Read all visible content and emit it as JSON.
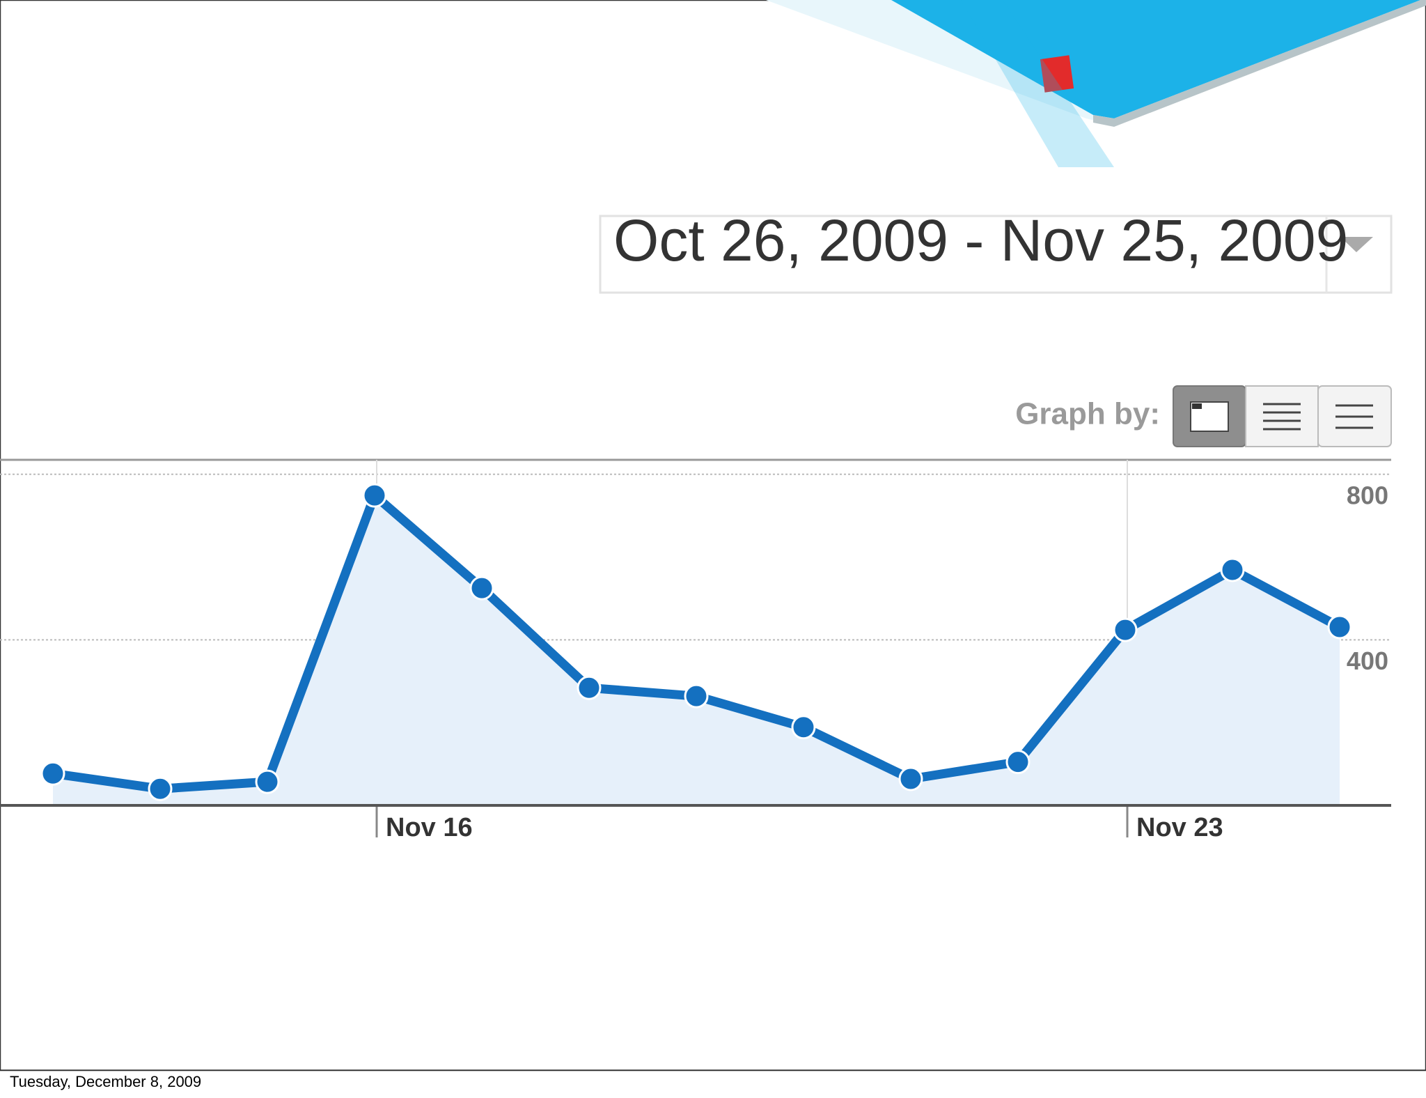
{
  "date_range": "Oct 26, 2009 - Nov 25, 2009",
  "graph_by_label": "Graph by:",
  "footer_date": "Tuesday, December 8, 2009",
  "chart_data": {
    "type": "line",
    "categories": [
      null,
      null,
      null,
      "Nov 16",
      null,
      null,
      null,
      null,
      null,
      null,
      "Nov 23",
      null,
      null
    ],
    "values": [
      77,
      40,
      57,
      749,
      525,
      284,
      264,
      189,
      64,
      105,
      424,
      569,
      431
    ],
    "color": "#1470c0",
    "ylim": [
      0,
      835
    ],
    "yticks": [
      400,
      800
    ],
    "grid": true
  }
}
